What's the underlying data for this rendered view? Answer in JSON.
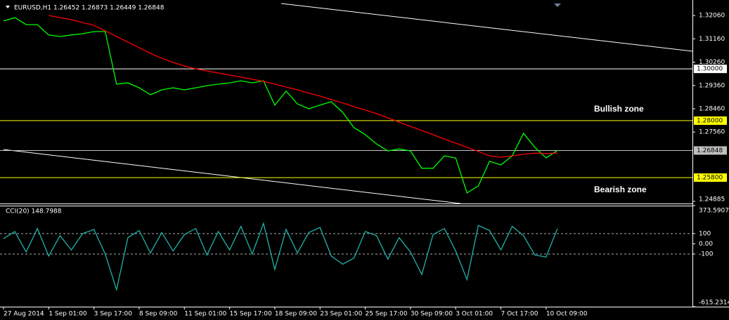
{
  "chart_data": [
    {
      "type": "line",
      "title": "EURUSD,H1 1.26452 1.26873 1.26449 1.26848",
      "ylim": [
        1.248,
        1.3266
      ],
      "yticks": [
        {
          "value": 1.3206,
          "label": "1.32060"
        },
        {
          "value": 1.3116,
          "label": "1.31160"
        },
        {
          "value": 1.3026,
          "label": "1.30260"
        },
        {
          "value": 1.2936,
          "label": "1.29360"
        },
        {
          "value": 1.2846,
          "label": "1.28460"
        },
        {
          "value": 1.2756,
          "label": "1.27560"
        },
        {
          "value": 1.24885,
          "label": "1.24885"
        }
      ],
      "series": [
        {
          "color": "#00ff00",
          "values": [
            1.3185,
            1.3198,
            1.3171,
            1.3171,
            1.3131,
            1.3125,
            1.3131,
            1.3136,
            1.3144,
            1.3144,
            1.2941,
            1.2946,
            1.2927,
            1.29,
            1.2919,
            1.2927,
            1.2919,
            1.2927,
            1.2935,
            1.2941,
            1.2946,
            1.2954,
            1.2946,
            1.2954,
            1.286,
            1.2914,
            1.2865,
            1.2846,
            1.286,
            1.2873,
            1.2832,
            1.2773,
            1.2746,
            1.271,
            1.2683,
            1.2691,
            1.2683,
            1.2616,
            1.2616,
            1.2664,
            1.2656,
            1.2521,
            1.2548,
            1.2643,
            1.2629,
            1.2664,
            1.2751,
            1.2697,
            1.2656,
            1.26848
          ]
        },
        {
          "color": "#ff0000",
          "values": [
            null,
            null,
            null,
            null,
            1.3206,
            1.3198,
            1.319,
            1.3179,
            1.3168,
            1.3147,
            1.3125,
            1.3103,
            1.3082,
            1.306,
            1.3041,
            1.3025,
            1.3011,
            1.3,
            1.2992,
            1.2984,
            1.2976,
            1.2968,
            1.296,
            1.2952,
            1.2941,
            1.293,
            1.2919,
            1.2906,
            1.2895,
            1.2881,
            1.2868,
            1.2854,
            1.2841,
            1.2827,
            1.2811,
            1.2794,
            1.2778,
            1.2762,
            1.2746,
            1.2729,
            1.2713,
            1.2697,
            1.2681,
            1.2664,
            1.2659,
            1.2664,
            1.267,
            1.2675,
            1.2673,
            1.2675
          ]
        }
      ],
      "levels": [
        {
          "value": 1.3,
          "label": "1.30000",
          "color": "#ffffff"
        },
        {
          "value": 1.28,
          "label": "1.28000",
          "color": "#ffff00"
        },
        {
          "value": 1.26848,
          "label": "1.26848",
          "color": "#c0c0c0"
        },
        {
          "value": 1.258,
          "label": "1.25800",
          "color": "#ffff00"
        }
      ],
      "annotations": [
        "Bullish zone",
        "Bearish zone"
      ]
    },
    {
      "type": "line",
      "title": "CCI(20) 148.7988",
      "categories": [
        "27 Aug 2014",
        null,
        null,
        null,
        "1 Sep 01:00",
        null,
        null,
        null,
        "3 Sep 17:00",
        null,
        null,
        null,
        "8 Sep 09:00",
        null,
        null,
        null,
        "11 Sep 01:00",
        null,
        null,
        null,
        "15 Sep 17:00",
        null,
        null,
        null,
        "18 Sep 09:00",
        null,
        null,
        null,
        "23 Sep 01:00",
        null,
        null,
        null,
        "25 Sep 17:00",
        null,
        null,
        null,
        "30 Sep 09:00",
        null,
        null,
        null,
        "3 Oct 01:00",
        null,
        null,
        null,
        "7 Oct 17:00",
        null,
        null,
        null,
        "10 Oct 09:00",
        null
      ],
      "ylim": [
        -615.2314,
        373.5907
      ],
      "yticks": [
        373.5907,
        100,
        {
          "value": 0,
          "label": "0.00"
        },
        -100,
        -615.2314
      ],
      "levels": [
        100,
        -100
      ],
      "series": [
        {
          "color": "#20b2aa",
          "values": [
            50,
            120,
            -80,
            150,
            -120,
            80,
            -60,
            100,
            140,
            -100,
            -450,
            60,
            130,
            -90,
            110,
            -70,
            90,
            150,
            -110,
            120,
            -60,
            170,
            -100,
            200,
            -250,
            140,
            -90,
            110,
            160,
            -120,
            -200,
            -140,
            120,
            80,
            -150,
            60,
            -80,
            -300,
            90,
            150,
            -70,
            -350,
            180,
            130,
            -60,
            170,
            80,
            -110,
            -130,
            148.7988
          ]
        }
      ]
    }
  ]
}
